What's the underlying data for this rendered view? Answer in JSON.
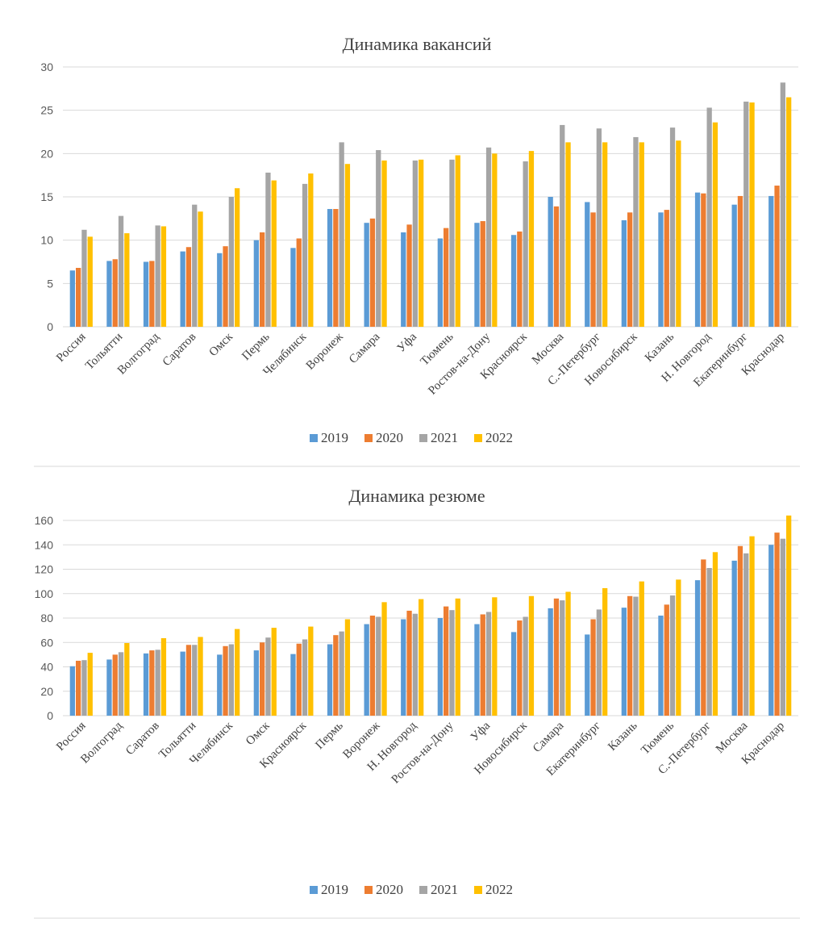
{
  "chart_data": [
    {
      "type": "bar",
      "title": "Динамика вакансий",
      "xlabel": "",
      "ylabel": "",
      "ylim": [
        0,
        30
      ],
      "yticks": [
        0,
        5,
        10,
        15,
        20,
        25,
        30
      ],
      "grid": true,
      "legend_position": "bottom",
      "categories": [
        "Россия",
        "Тольятти",
        "Волгоград",
        "Саратов",
        "Омск",
        "Пермь",
        "Челябинск",
        "Воронеж",
        "Самара",
        "Уфа",
        "Тюмень",
        "Ростов-на-Дону",
        "Красноярск",
        "Москва",
        "С.-Петербург",
        "Новосибирск",
        "Казань",
        "Н. Новгород",
        "Екатеринбург",
        "Краснодар"
      ],
      "series": [
        {
          "name": "2019",
          "color": "#5b9bd5",
          "values": [
            6.5,
            7.6,
            7.5,
            8.7,
            8.5,
            10.0,
            9.1,
            13.6,
            12.0,
            10.9,
            10.2,
            12.0,
            10.6,
            15.0,
            14.4,
            12.3,
            13.2,
            15.5,
            14.1,
            15.1
          ]
        },
        {
          "name": "2020",
          "color": "#ed7d31",
          "values": [
            6.8,
            7.8,
            7.6,
            9.2,
            9.3,
            10.9,
            10.2,
            13.6,
            12.5,
            11.8,
            11.4,
            12.2,
            11.0,
            13.9,
            13.2,
            13.2,
            13.5,
            15.4,
            15.1,
            16.3
          ]
        },
        {
          "name": "2021",
          "color": "#a5a5a5",
          "values": [
            11.2,
            12.8,
            11.7,
            14.1,
            15.0,
            17.8,
            16.5,
            21.3,
            20.4,
            19.2,
            19.3,
            20.7,
            19.1,
            23.3,
            22.9,
            21.9,
            23.0,
            25.3,
            26.0,
            28.2
          ]
        },
        {
          "name": "2022",
          "color": "#ffc000",
          "values": [
            10.4,
            10.8,
            11.6,
            13.3,
            16.0,
            16.9,
            17.7,
            18.8,
            19.2,
            19.3,
            19.8,
            20.0,
            20.3,
            21.3,
            21.3,
            21.3,
            21.5,
            23.6,
            25.9,
            26.5
          ]
        }
      ]
    },
    {
      "type": "bar",
      "title": "Динамика резюме",
      "xlabel": "",
      "ylabel": "",
      "ylim": [
        0,
        160
      ],
      "yticks": [
        0,
        20,
        40,
        60,
        80,
        100,
        120,
        140,
        160
      ],
      "grid": true,
      "legend_position": "bottom",
      "categories": [
        "Россия",
        "Волгоград",
        "Саратов",
        "Тольятти",
        "Челябинск",
        "Омск",
        "Красноярск",
        "Пермь",
        "Воронеж",
        "Н. Новгород",
        "Ростов-на-Дону",
        "Уфа",
        "Новосибирск",
        "Самара",
        "Екатеринбург",
        "Казань",
        "Тюмень",
        "С.-Петербург",
        "Москва",
        "Краснодар"
      ],
      "series": [
        {
          "name": "2019",
          "color": "#5b9bd5",
          "values": [
            40.5,
            46,
            51,
            52.5,
            50,
            53.5,
            50.5,
            58.5,
            75,
            79,
            80,
            75,
            68.5,
            88,
            66.5,
            88.5,
            82,
            111,
            127,
            140
          ]
        },
        {
          "name": "2020",
          "color": "#ed7d31",
          "values": [
            45,
            50,
            53.5,
            58,
            57,
            60,
            59,
            66,
            82,
            86,
            89.5,
            83,
            78,
            96,
            79,
            98,
            91,
            128,
            139,
            150
          ]
        },
        {
          "name": "2021",
          "color": "#a5a5a5",
          "values": [
            45.5,
            52,
            54,
            58,
            58.5,
            64,
            62.5,
            69,
            81,
            83.5,
            86.5,
            85,
            81,
            94.5,
            87,
            97.5,
            98.5,
            121,
            133,
            145
          ]
        },
        {
          "name": "2022",
          "color": "#ffc000",
          "values": [
            51.5,
            59.5,
            63.5,
            64.5,
            71,
            72,
            73,
            79,
            93,
            95.5,
            96,
            97,
            98,
            101.5,
            104.5,
            110,
            111.5,
            134,
            147,
            164
          ]
        }
      ]
    }
  ]
}
